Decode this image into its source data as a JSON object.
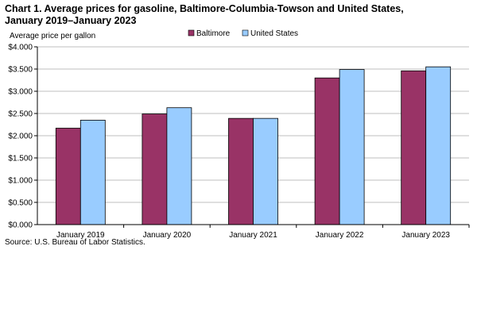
{
  "chart_title": {
    "line1": "Chart 1. Average prices for gasoline, Baltimore-Columbia-Towson and United States,",
    "line2": "January 2019–January 2023"
  },
  "source_note": "Source: U.S. Bureau of Labor Statistics.",
  "chart_data": {
    "type": "bar",
    "ylabel": "Average price per gallon",
    "xlabel": "",
    "categories": [
      "January 2019",
      "January 2020",
      "January 2021",
      "January 2022",
      "January 2023"
    ],
    "series": [
      {
        "name": "Baltimore",
        "color": "#993366",
        "values": [
          2.17,
          2.49,
          2.39,
          3.3,
          3.46
        ]
      },
      {
        "name": "United States",
        "color": "#99CCFF",
        "values": [
          2.35,
          2.63,
          2.39,
          3.49,
          3.55
        ]
      }
    ],
    "ylim": [
      0,
      4.0
    ],
    "yticks": [
      "$0.000",
      "$0.500",
      "$1.000",
      "$1.500",
      "$2.000",
      "$2.500",
      "$3.000",
      "$3.500",
      "$4.000"
    ],
    "ytick_values": [
      0,
      0.5,
      1.0,
      1.5,
      2.0,
      2.5,
      3.0,
      3.5,
      4.0
    ],
    "grid": true,
    "legend": "top-center"
  }
}
